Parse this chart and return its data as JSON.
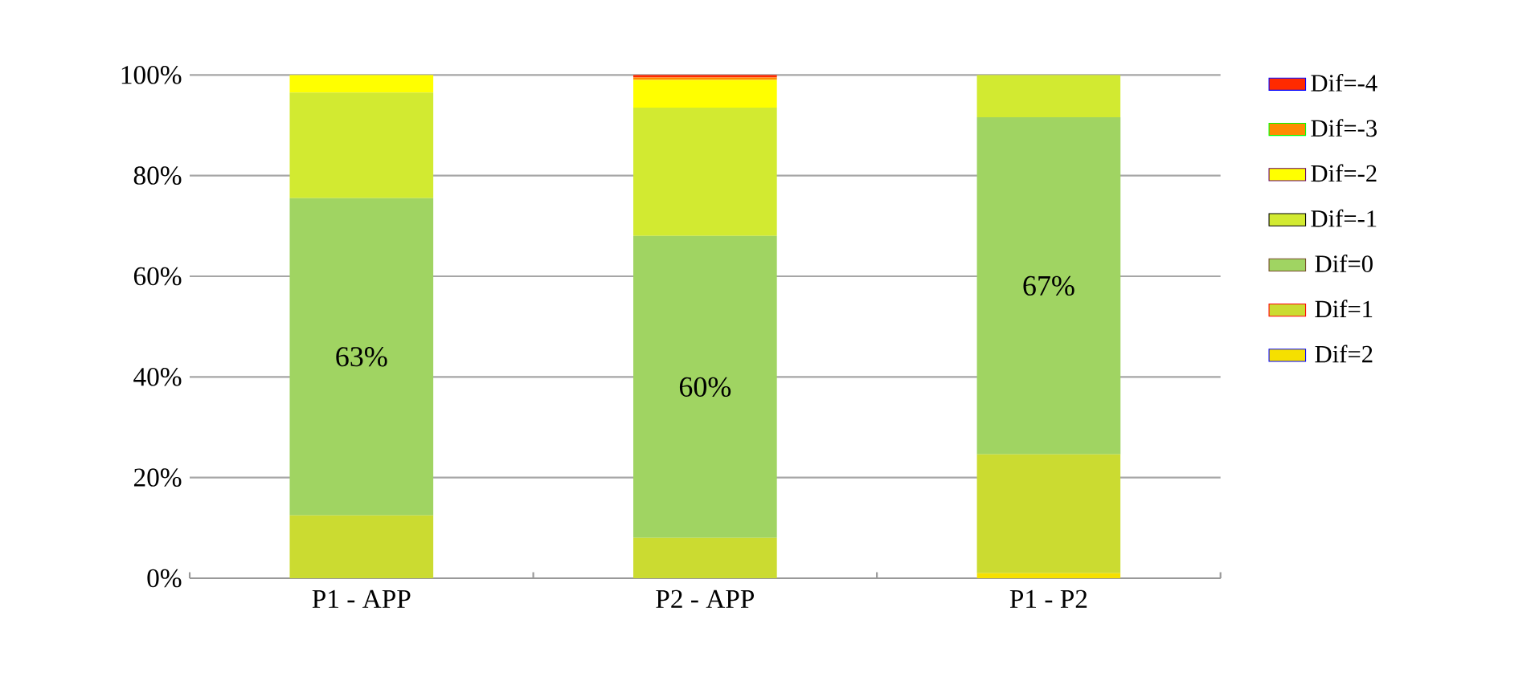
{
  "chart_data": {
    "type": "bar",
    "stacked": true,
    "categories": [
      "P1 - APP",
      "P2 - APP",
      "P1 - P2"
    ],
    "series": [
      {
        "name": "Dif=2",
        "color": "#f5e000",
        "values": [
          0,
          0,
          1
        ]
      },
      {
        "name": "Dif=1",
        "color": "#cbdb31",
        "values": [
          12.5,
          8,
          23.6
        ]
      },
      {
        "name": "Dif=0",
        "color": "#a0d462",
        "values": [
          63,
          60,
          67
        ],
        "value_labels": [
          "63%",
          "60%",
          "67%"
        ]
      },
      {
        "name": "Dif=-1",
        "color": "#d2ea31",
        "values": [
          21,
          25.5,
          8.4
        ]
      },
      {
        "name": "Dif=-2",
        "color": "#ffff00",
        "values": [
          3.5,
          5.5,
          0
        ]
      },
      {
        "name": "Dif=-3",
        "color": "#ff8c00",
        "values": [
          0,
          0.5,
          0
        ]
      },
      {
        "name": "Dif=-4",
        "color": "#ff2a00",
        "values": [
          0,
          0.5,
          0
        ]
      }
    ],
    "ylim": [
      0,
      100
    ],
    "yticks": [
      {
        "value": 0,
        "label": "0%"
      },
      {
        "value": 20,
        "label": "20%"
      },
      {
        "value": 40,
        "label": "40%"
      },
      {
        "value": 60,
        "label": "60%"
      },
      {
        "value": 80,
        "label": "80%"
      },
      {
        "value": 100,
        "label": "100%"
      }
    ],
    "grid": "y",
    "legend": "right"
  }
}
